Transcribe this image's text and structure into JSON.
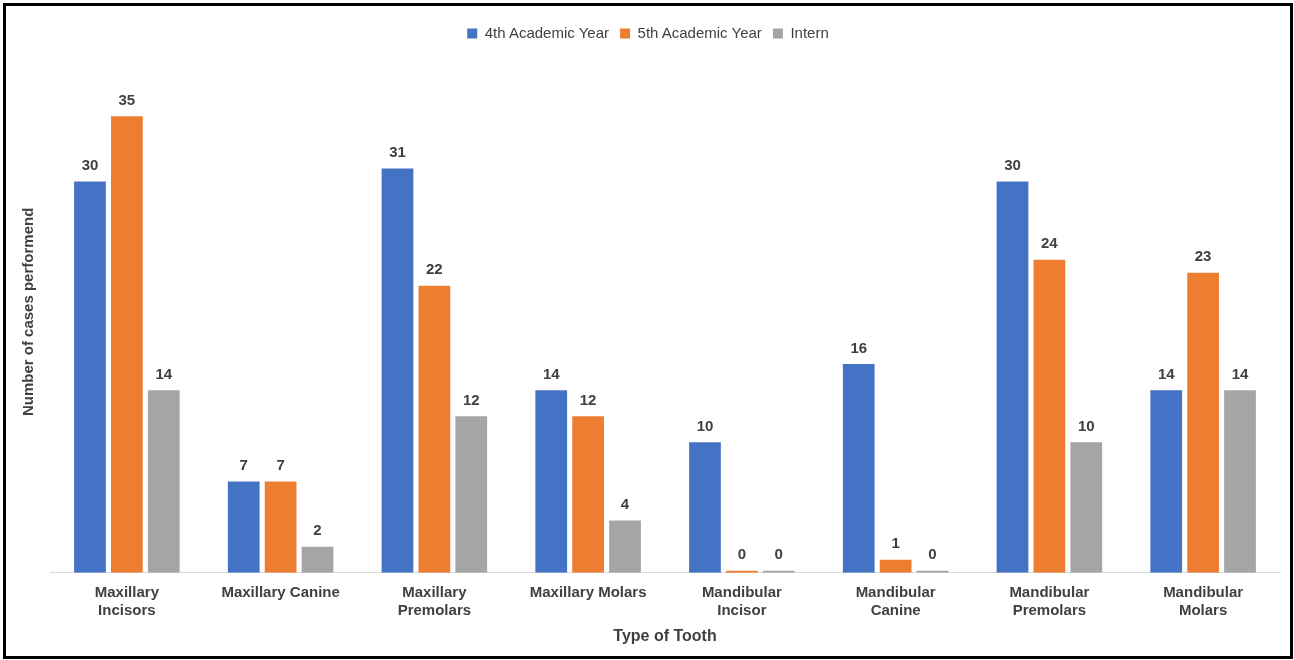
{
  "chart_data": {
    "type": "bar",
    "xlabel": "Type of Tooth",
    "ylabel": "Number of cases performend",
    "categories": [
      "Maxillary Incisors",
      "Maxillary Canine",
      "Maxillary Premolars",
      "Maxillary Molars",
      "Mandibular Incisor",
      "Mandibular Canine",
      "Mandibular Premolars",
      "Mandibular Molars"
    ],
    "series": [
      {
        "name": "4th Academic Year",
        "color": "#4472c4",
        "values": [
          30,
          7,
          31,
          14,
          10,
          16,
          30,
          14
        ]
      },
      {
        "name": "5th Academic Year",
        "color": "#ed7d31",
        "values": [
          35,
          7,
          22,
          12,
          0,
          1,
          24,
          23
        ]
      },
      {
        "name": "Intern",
        "color": "#a5a5a5",
        "values": [
          14,
          2,
          12,
          4,
          0,
          0,
          10,
          14
        ]
      }
    ],
    "data_labels": true,
    "legend": "top",
    "grid": false
  }
}
